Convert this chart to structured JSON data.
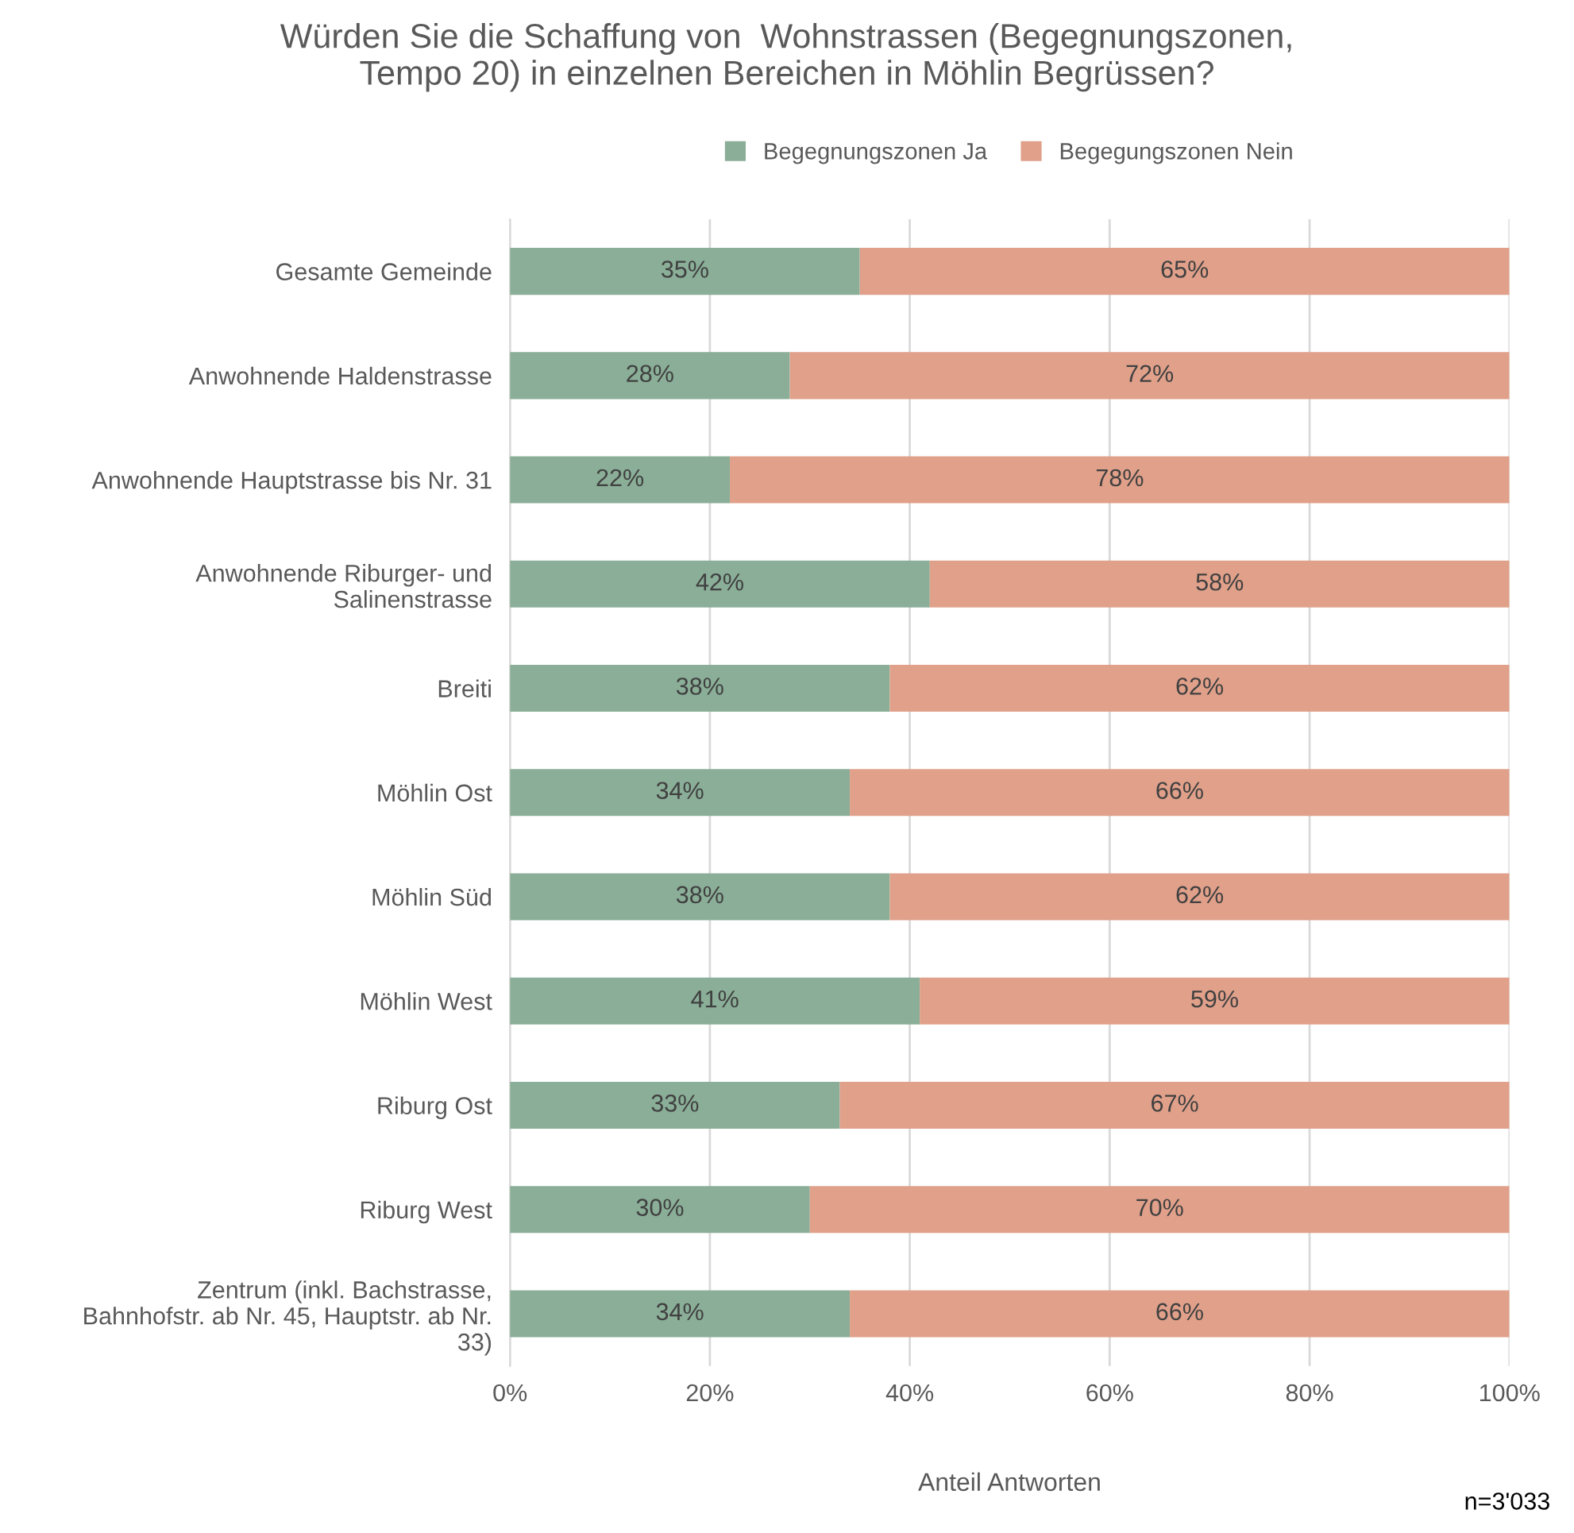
{
  "chart_data": {
    "type": "bar",
    "orientation": "horizontal",
    "stacked": true,
    "title": "Würden Sie die Schaffung von  Wohnstrassen (Begegnungszonen,\nTempo 20) in einzelnen Bereichen in Möhlin Begrüssen?",
    "xlabel": "Anteil Antworten",
    "categories": [
      "Gesamte Gemeinde",
      "Anwohnende Haldenstrasse",
      "Anwohnende Hauptstrasse bis Nr. 31",
      "Anwohnende Riburger- und\nSalinenstrasse",
      "Breiti",
      "Möhlin Ost",
      "Möhlin Süd",
      "Möhlin West",
      "Riburg Ost",
      "Riburg West",
      "Zentrum (inkl. Bachstrasse,\nBahnhofstr. ab Nr. 45, Hauptstr. ab Nr.\n33)"
    ],
    "series": [
      {
        "name": "Begegnungszonen Ja",
        "color": "#8aae97",
        "values": [
          35,
          28,
          22,
          42,
          38,
          34,
          38,
          41,
          33,
          30,
          34
        ],
        "value_labels": [
          "35%",
          "28%",
          "22%",
          "42%",
          "38%",
          "34%",
          "38%",
          "41%",
          "33%",
          "30%",
          "34%"
        ]
      },
      {
        "name": "Begegungszonen Nein",
        "color": "#e0a08a",
        "values": [
          65,
          72,
          78,
          58,
          62,
          66,
          62,
          59,
          67,
          70,
          66
        ],
        "value_labels": [
          "65%",
          "72%",
          "78%",
          "58%",
          "62%",
          "66%",
          "62%",
          "59%",
          "67%",
          "70%",
          "66%"
        ]
      }
    ],
    "xlim": [
      0,
      100
    ],
    "xticks": [
      {
        "value": 0,
        "label": "0%"
      },
      {
        "value": 20,
        "label": "20%"
      },
      {
        "value": 40,
        "label": "40%"
      },
      {
        "value": 60,
        "label": "60%"
      },
      {
        "value": 80,
        "label": "80%"
      },
      {
        "value": 100,
        "label": "100%"
      }
    ],
    "grid": "x",
    "legend": "top",
    "annotations": [
      "n=3'033"
    ]
  }
}
